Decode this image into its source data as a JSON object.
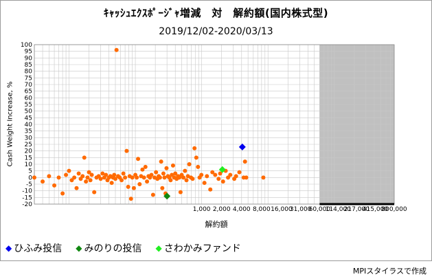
{
  "title": "ｷｬｯｼｭｴｸｽﾎﾟｰｼﾞｬ増減　対　解約額(国内株式型)",
  "subtitle": "2019/12/02-2020/03/13",
  "credit": "MPIスタイラスで作成",
  "legend": [
    {
      "name": "ひふみ投信",
      "color": "#0000ee"
    },
    {
      "name": "みのりの投信",
      "color": "#118811"
    },
    {
      "name": "さわかみファンド",
      "color": "#22ee22"
    }
  ],
  "chart_data": {
    "type": "scatter",
    "xscale": "log",
    "xlabel": "解約額",
    "ylabel": "Cash Weight Increase, %",
    "ylim": [
      -20,
      100
    ],
    "yticks": [
      -20,
      -15,
      -10,
      -5,
      0,
      5,
      10,
      15,
      20,
      25,
      30,
      35,
      40,
      45,
      50,
      55,
      60,
      65,
      70,
      75,
      80,
      85,
      90,
      95,
      100
    ],
    "xticks": [
      {
        "value": 1000,
        "label": "1,000"
      },
      {
        "value": 2000,
        "label": "2,000"
      },
      {
        "value": 4000,
        "label": "4,000"
      },
      {
        "value": 8000,
        "label": "8,000"
      },
      {
        "value": 16000,
        "label": "16,000"
      },
      {
        "value": 31000,
        "label": "31,000"
      },
      {
        "value": 60000,
        "label": "60,000"
      },
      {
        "value": 114000,
        "label": "114,000"
      },
      {
        "value": 217000,
        "label": "217,000"
      },
      {
        "value": 415000,
        "label": "415,000"
      },
      {
        "value": 800000,
        "label": "800,000"
      }
    ],
    "grid": true,
    "shaded_region": {
      "x_from": 60000,
      "x_to": 800000,
      "color": "#c0c0c0"
    },
    "background_series": {
      "color": "#ff6a00",
      "points": [
        [
          3,
          0
        ],
        [
          4,
          -3
        ],
        [
          5,
          1
        ],
        [
          6,
          -6
        ],
        [
          7,
          0
        ],
        [
          8,
          -12
        ],
        [
          9,
          2
        ],
        [
          10,
          5
        ],
        [
          11,
          -2
        ],
        [
          12,
          0
        ],
        [
          13,
          -8
        ],
        [
          14,
          3
        ],
        [
          15,
          -1
        ],
        [
          16,
          1
        ],
        [
          17,
          15
        ],
        [
          18,
          -3
        ],
        [
          19,
          0
        ],
        [
          20,
          4
        ],
        [
          21,
          -2
        ],
        [
          22,
          2
        ],
        [
          24,
          -11
        ],
        [
          26,
          0
        ],
        [
          28,
          1
        ],
        [
          30,
          -1
        ],
        [
          32,
          3
        ],
        [
          34,
          0
        ],
        [
          36,
          2
        ],
        [
          38,
          -2
        ],
        [
          40,
          0
        ],
        [
          42,
          1
        ],
        [
          44,
          -4
        ],
        [
          46,
          0
        ],
        [
          48,
          2
        ],
        [
          50,
          -1
        ],
        [
          52,
          96
        ],
        [
          55,
          1
        ],
        [
          58,
          0
        ],
        [
          62,
          -2
        ],
        [
          66,
          3
        ],
        [
          70,
          0
        ],
        [
          74,
          20
        ],
        [
          78,
          -7
        ],
        [
          82,
          1
        ],
        [
          86,
          -16
        ],
        [
          90,
          0
        ],
        [
          95,
          -8
        ],
        [
          100,
          2
        ],
        [
          105,
          0
        ],
        [
          110,
          14
        ],
        [
          116,
          -5
        ],
        [
          122,
          1
        ],
        [
          128,
          6
        ],
        [
          135,
          0
        ],
        [
          142,
          8
        ],
        [
          150,
          -3
        ],
        [
          158,
          1
        ],
        [
          166,
          0
        ],
        [
          175,
          2
        ],
        [
          185,
          -13
        ],
        [
          195,
          0
        ],
        [
          205,
          4
        ],
        [
          215,
          -1
        ],
        [
          225,
          1
        ],
        [
          235,
          0
        ],
        [
          245,
          12
        ],
        [
          255,
          -8
        ],
        [
          265,
          3
        ],
        [
          275,
          0
        ],
        [
          285,
          -12
        ],
        [
          295,
          7
        ],
        [
          310,
          1
        ],
        [
          325,
          0
        ],
        [
          340,
          -2
        ],
        [
          355,
          2
        ],
        [
          370,
          9
        ],
        [
          385,
          0
        ],
        [
          400,
          3
        ],
        [
          420,
          -1
        ],
        [
          440,
          1
        ],
        [
          460,
          0
        ],
        [
          480,
          -11
        ],
        [
          500,
          2
        ],
        [
          530,
          0
        ],
        [
          560,
          5
        ],
        [
          590,
          -2
        ],
        [
          620,
          1
        ],
        [
          650,
          10
        ],
        [
          690,
          0
        ],
        [
          730,
          -1
        ],
        [
          780,
          22
        ],
        [
          830,
          15
        ],
        [
          880,
          8
        ],
        [
          930,
          0
        ],
        [
          990,
          2
        ],
        [
          1100,
          -4
        ],
        [
          1200,
          1
        ],
        [
          1350,
          -9
        ],
        [
          1450,
          4
        ],
        [
          1600,
          2
        ],
        [
          1800,
          -1
        ],
        [
          1900,
          3
        ],
        [
          2100,
          -3
        ],
        [
          2300,
          5
        ],
        [
          2500,
          0
        ],
        [
          2700,
          2
        ],
        [
          3100,
          -1
        ],
        [
          3300,
          1
        ],
        [
          3700,
          4
        ],
        [
          4300,
          0
        ],
        [
          4500,
          12
        ],
        [
          4700,
          0
        ],
        [
          8500,
          0
        ]
      ]
    },
    "series": [
      {
        "name": "ひふみ投信",
        "color": "#0000ee",
        "marker": "diamond",
        "points": [
          [
            4100,
            23
          ]
        ]
      },
      {
        "name": "みのりの投信",
        "color": "#118811",
        "marker": "diamond",
        "points": [
          [
            300,
            -14
          ]
        ]
      },
      {
        "name": "さわかみファンド",
        "color": "#22ee22",
        "marker": "diamond",
        "points": [
          [
            2050,
            6
          ]
        ]
      }
    ]
  }
}
